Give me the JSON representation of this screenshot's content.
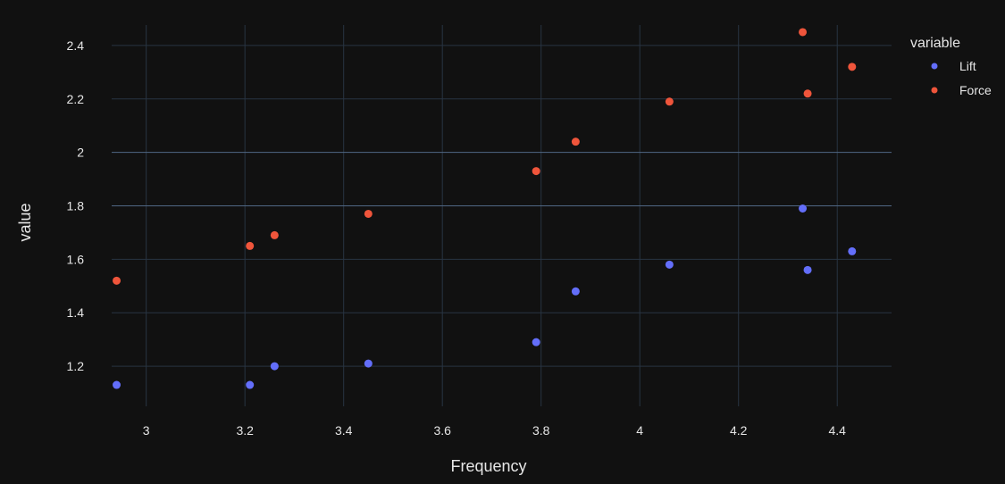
{
  "chart_data": {
    "type": "scatter",
    "xlabel": "Frequency",
    "ylabel": "value",
    "xlim": [
      2.93,
      4.51
    ],
    "ylim": [
      1.05,
      2.53
    ],
    "x_ticks": [
      3,
      3.2,
      3.4,
      3.6,
      3.8,
      4,
      4.2,
      4.4
    ],
    "x_tick_labels": [
      "3",
      "3.2",
      "3.4",
      "3.6",
      "3.8",
      "4",
      "4.2",
      "4.4"
    ],
    "y_ticks": [
      1.2,
      1.4,
      1.6,
      1.8,
      2,
      2.2,
      2.4
    ],
    "y_tick_labels": [
      "1.2",
      "1.4",
      "1.6",
      "1.8",
      "2",
      "2.2",
      "2.4"
    ],
    "grid": true,
    "legend": {
      "title": "variable",
      "position": "top-right"
    },
    "series": [
      {
        "name": "Lift",
        "color": "#636efa",
        "x": [
          2.94,
          3.21,
          3.26,
          3.45,
          3.79,
          3.87,
          4.06,
          4.33,
          4.34,
          4.43
        ],
        "y": [
          1.13,
          1.13,
          1.2,
          1.21,
          1.29,
          1.48,
          1.58,
          1.79,
          1.56,
          1.63
        ]
      },
      {
        "name": "Force",
        "color": "#ef553b",
        "x": [
          2.94,
          3.21,
          3.26,
          3.45,
          3.79,
          3.87,
          4.06,
          4.33,
          4.34,
          4.43
        ],
        "y": [
          1.52,
          1.65,
          1.69,
          1.77,
          1.93,
          2.04,
          2.19,
          2.45,
          2.22,
          2.32
        ]
      }
    ]
  }
}
